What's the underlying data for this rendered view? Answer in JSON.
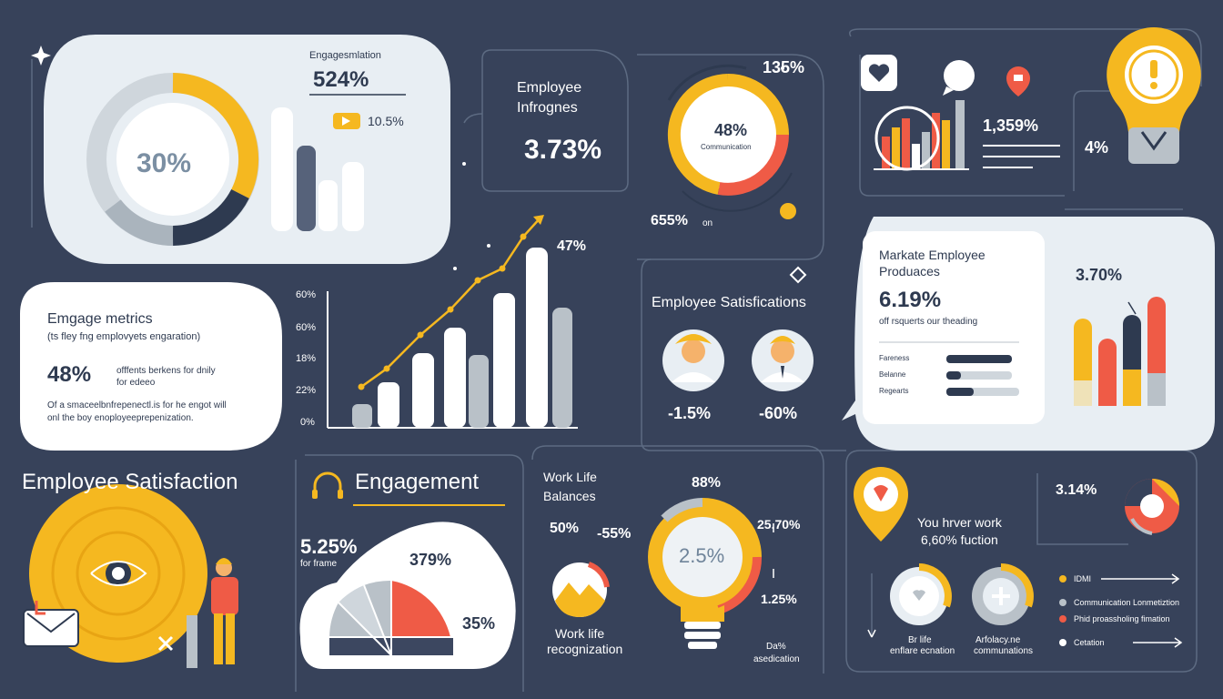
{
  "colors": {
    "background": "#37425a",
    "accent_yellow": "#f5b820",
    "accent_red": "#ef5b46",
    "navy": "#2e3a50",
    "light": "#e8eef3",
    "gray": "#b9c1c8"
  },
  "panel_top_left": {
    "header": "Engagesmlation",
    "value_main": "524%",
    "value_small": "10.5%",
    "donut_value": "30%"
  },
  "panel_infro": {
    "title_line1": "Employee",
    "title_line2": "Infrognes",
    "value": "3.73%"
  },
  "panel_comm": {
    "value_top": "135%",
    "donut_value": "48%",
    "donut_label": "Communication",
    "value_bottom": "655%",
    "value_bottom_unit": "on"
  },
  "panel_top_right": {
    "value_1": "1,359%",
    "value_2": "4%"
  },
  "panel_engage_metrics": {
    "title": "Emgage metrics",
    "subtitle": "(ts fley fng emplovyets engaration)",
    "value": "48%",
    "value_note_1": "offfents berkens for dnily",
    "value_note_2": "for edeeo",
    "footer_1": "Of a smaceelbnfrepenectl.is for he engot will",
    "footer_2": "onl the boy enoployeeprepenization."
  },
  "growth_chart": {
    "peak_label": "47%",
    "ticks": [
      "60%",
      "60%",
      "18%",
      "22%",
      "0%"
    ]
  },
  "panel_satisfications": {
    "title": "Employee Satisfications",
    "value_1": "-1.5%",
    "value_2": "-60%"
  },
  "panel_market": {
    "title_line1": "Markate Employee",
    "title_line2": "Produaces",
    "value": "6.19%",
    "note": "off rsquerts our theading",
    "row_1": "Fareness",
    "row_2": "Belanne",
    "row_3": "Regearts",
    "side_value": "3.70%"
  },
  "section_satisfaction": {
    "title": "Employee Satisfaction"
  },
  "section_engagement": {
    "title": "Engagement",
    "value": "5.25%",
    "value_note": "for frame",
    "pie_value": "379%",
    "pie_value_2": "35%"
  },
  "panel_worklife": {
    "title_line1": "Work Life",
    "title_line2": "Balances",
    "value_50": "50%",
    "value_neg": "-55%",
    "value_88": "88%",
    "value_right": "25.70%",
    "bulb_value": "2.5%",
    "value_125": "1.25%",
    "recog_line1": "Work life",
    "recog_line2": "recognization",
    "note_1": "Da%",
    "note_2": "asedication"
  },
  "panel_bottom_right": {
    "value": "3.14%",
    "heading_line1": "You hrver work",
    "heading_line2": "6,60% fuction",
    "circle_label_1a": "Br life",
    "circle_label_1b": "enflare ecnation",
    "circle_label_2a": "Arfolacy.ne",
    "circle_label_2b": "communations",
    "legend_1": "IDMI",
    "legend_2": "Communication Lonmetiztion",
    "legend_3": "Phid proassholing fimation",
    "legend_4": "Cetation"
  }
}
